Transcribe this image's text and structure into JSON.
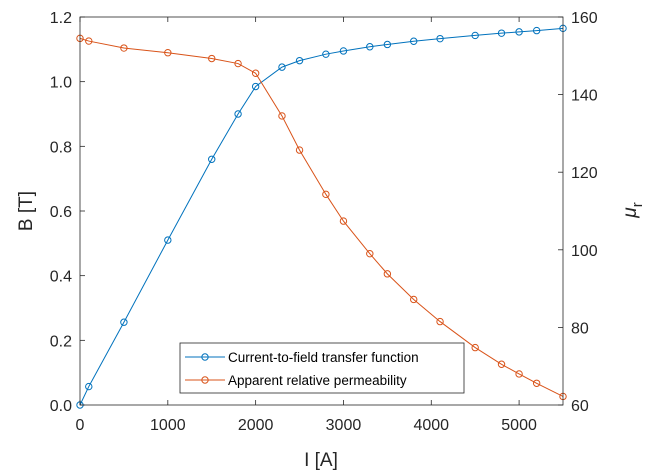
{
  "chart_data": {
    "type": "line",
    "title": "",
    "xlabel": "I [A]",
    "ylabel_left": "B [T]",
    "ylabel_right_symbol": "μ",
    "ylabel_right_subscript": "r",
    "xlim": [
      0,
      5500
    ],
    "ylim_left": [
      0,
      1.2
    ],
    "ylim_right": [
      60,
      160
    ],
    "x_ticks": [
      "0",
      "1000",
      "2000",
      "3000",
      "4000",
      "5000"
    ],
    "y_left_ticks": [
      "0.0",
      "0.2",
      "0.4",
      "0.6",
      "0.8",
      "1.0",
      "1.2"
    ],
    "y_right_ticks": [
      "60",
      "80",
      "100",
      "120",
      "140",
      "160"
    ],
    "grid": false,
    "legend_position": "bottom-center",
    "series": [
      {
        "name": "Current-to-field transfer function",
        "axis": "left",
        "color": "#0072BD",
        "x": [
          0,
          100,
          500,
          1000,
          1500,
          1800,
          2000,
          2300,
          2500,
          2800,
          3000,
          3300,
          3500,
          3800,
          4100,
          4500,
          4800,
          5000,
          5200,
          5500
        ],
        "y": [
          0.0,
          0.057,
          0.256,
          0.51,
          0.76,
          0.9,
          0.985,
          1.045,
          1.065,
          1.085,
          1.095,
          1.108,
          1.115,
          1.125,
          1.133,
          1.143,
          1.15,
          1.154,
          1.158,
          1.165
        ]
      },
      {
        "name": "Apparent relative permeability",
        "axis": "right",
        "color": "#D95319",
        "x": [
          0,
          100,
          500,
          1000,
          1500,
          1800,
          2000,
          2300,
          2500,
          2800,
          3000,
          3300,
          3500,
          3800,
          4100,
          4500,
          4800,
          5000,
          5200,
          5500
        ],
        "y": [
          154.5,
          153.8,
          152.0,
          150.8,
          149.3,
          148.0,
          145.5,
          134.5,
          125.7,
          114.3,
          107.4,
          99.0,
          93.8,
          87.2,
          81.5,
          74.8,
          70.5,
          68.0,
          65.6,
          62.2
        ]
      }
    ]
  }
}
